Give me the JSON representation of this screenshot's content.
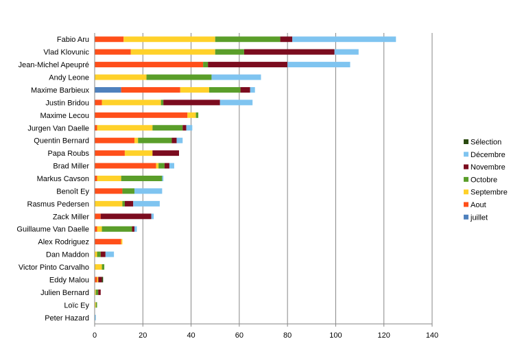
{
  "chart_data": {
    "type": "bar",
    "orientation": "horizontal",
    "stacked": true,
    "grid": true,
    "legend_position": "right",
    "xlim": [
      0,
      140
    ],
    "x_ticks": [
      0,
      20,
      40,
      60,
      80,
      100,
      120,
      140
    ],
    "categories": [
      "Fabio Aru",
      "Vlad Klovunic",
      "Jean-Michel Apeupré",
      "Andy Leone",
      "Maxime Barbieux",
      "Justin Bridou",
      "Maxime Lecou",
      "Jurgen Van Daelle",
      "Quentin Bernard",
      "Papa Roubs",
      "Brad Miller",
      "Markus Cavson",
      "Benoît Ey",
      "Rasmus Pedersen",
      "Zack Miller",
      "Guillaume Van Daelle",
      "Alex Rodriguez",
      "Dan Maddon",
      "Victor Pinto Carvalho",
      "Eddy Malou",
      "Julien Bernard",
      "Loïc Ey",
      "Peter Hazard"
    ],
    "series": [
      {
        "name": "juillet",
        "color": "#4f81bd",
        "values": [
          0,
          0,
          0,
          0,
          11,
          0,
          0,
          0,
          0,
          0,
          0,
          0,
          0,
          0,
          0,
          0,
          0,
          0,
          0,
          0,
          0,
          0,
          0
        ]
      },
      {
        "name": "Aout",
        "color": "#ff4f1a",
        "values": [
          12,
          15,
          45,
          0,
          24.5,
          3,
          38.5,
          1,
          16.5,
          12.5,
          25.5,
          1,
          11.5,
          0,
          2.5,
          1,
          11,
          0,
          0,
          1,
          0,
          0,
          0
        ]
      },
      {
        "name": "Septembre",
        "color": "#ffd12a",
        "values": [
          38,
          35,
          0,
          21.5,
          12,
          24.5,
          3.5,
          23,
          1.5,
          11.5,
          1,
          10,
          0,
          11.5,
          0,
          2,
          0.5,
          1,
          3,
          0.5,
          0.5,
          0.5,
          0
        ]
      },
      {
        "name": "Octobre",
        "color": "#5a9e2a",
        "values": [
          27,
          12,
          2,
          27,
          13,
          1,
          1,
          12.5,
          14,
          0,
          2.5,
          17,
          5,
          1,
          0,
          12.5,
          0,
          1.5,
          1,
          0,
          1,
          0.5,
          0
        ]
      },
      {
        "name": "Novembre",
        "color": "#7b0c1f",
        "values": [
          5,
          37.5,
          33,
          0,
          4,
          23.5,
          0,
          1.5,
          2,
          11,
          2,
          0,
          0,
          3.5,
          21,
          1,
          0,
          2,
          0,
          1.5,
          1,
          0,
          0
        ]
      },
      {
        "name": "Décembre",
        "color": "#7fc4f0",
        "values": [
          43,
          10,
          26,
          20.5,
          2,
          13.5,
          0,
          2.5,
          2.5,
          0,
          2,
          0.5,
          11.5,
          11,
          1,
          1,
          0,
          3.5,
          0,
          0,
          0,
          0,
          0.5
        ]
      },
      {
        "name": "Sélection",
        "color": "#2a4a10",
        "values": [
          0,
          0,
          0,
          0,
          0,
          0,
          0,
          0,
          0,
          0,
          0,
          0,
          0,
          0,
          0,
          0,
          0,
          0,
          0,
          0.5,
          0,
          0,
          0
        ]
      }
    ],
    "legend_order": [
      "Sélection",
      "Décembre",
      "Novembre",
      "Octobre",
      "Septembre",
      "Aout",
      "juillet"
    ]
  }
}
